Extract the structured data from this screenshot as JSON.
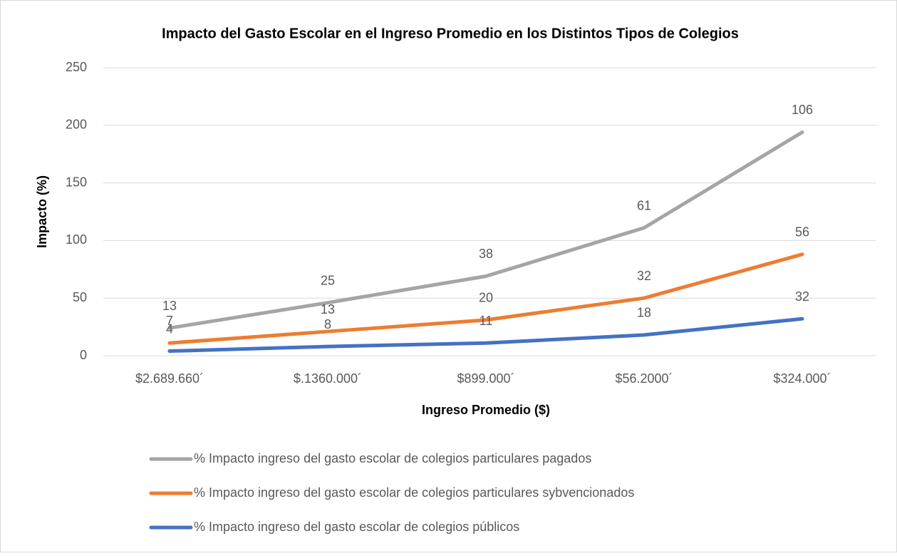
{
  "chart_data": {
    "type": "line",
    "stacked": true,
    "title": "Impacto del Gasto Escolar en el Ingreso Promedio en los Distintos Tipos de Colegios",
    "x_label": "Ingreso Promedio ($)",
    "y_label": "Impacto (%)",
    "categories": [
      "$2.689.660´",
      "$.1360.000´",
      "$899.000´",
      "$56.2000´",
      "$324.000´"
    ],
    "series": [
      {
        "name": "% Impacto ingreso del gasto escolar de colegios particulares pagados",
        "color": "#a5a5a5",
        "values": [
          13,
          25,
          38,
          61,
          106
        ]
      },
      {
        "name": "% Impacto ingreso del gasto escolar de colegios particulares sybvencionados",
        "color": "#ed7d31",
        "values": [
          7,
          13,
          20,
          32,
          56
        ]
      },
      {
        "name": "% Impacto ingreso del gasto escolar de colegios públicos",
        "color": "#4472c4",
        "values": [
          4,
          8,
          11,
          18,
          32
        ]
      }
    ],
    "ylim": [
      0,
      250
    ],
    "yticks": [
      0,
      50,
      100,
      150,
      200,
      250
    ],
    "grid": true,
    "legend": "bottom"
  }
}
